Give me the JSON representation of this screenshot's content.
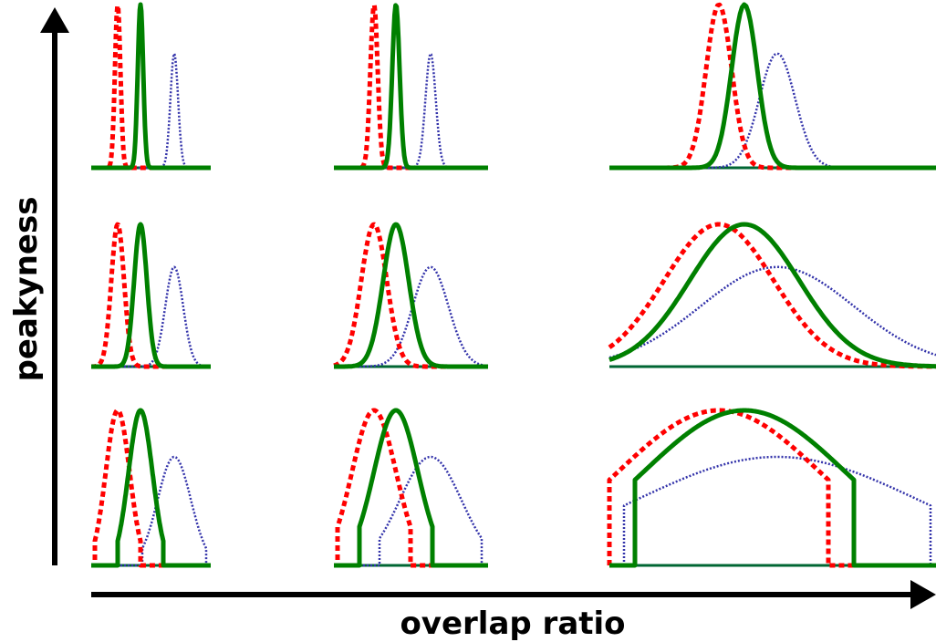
{
  "axes": {
    "x_label": "overlap ratio",
    "y_label": "peakyness"
  },
  "colors": {
    "axis": "#000000",
    "baseline": "#006633",
    "series_a": "#ff0000",
    "series_b": "#008000",
    "series_c": "#3333aa"
  },
  "legend": null
}
